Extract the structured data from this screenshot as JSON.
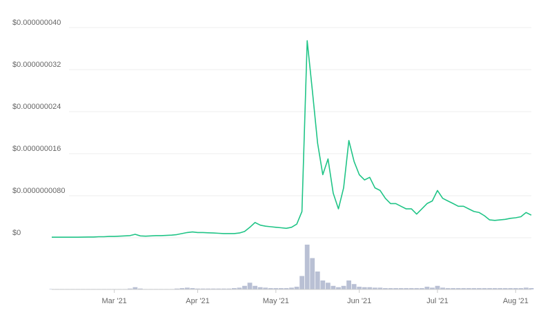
{
  "chart_data": [
    {
      "type": "line",
      "categories": [
        null,
        null,
        null,
        null,
        null,
        null,
        null,
        null,
        null,
        null,
        null,
        null,
        "Mar '21",
        null,
        null,
        null,
        null,
        null,
        null,
        null,
        null,
        null,
        null,
        null,
        null,
        null,
        null,
        null,
        "Apr '21",
        null,
        null,
        null,
        null,
        null,
        null,
        null,
        null,
        null,
        null,
        null,
        null,
        null,
        null,
        "May '21",
        null,
        null,
        null,
        null,
        null,
        null,
        null,
        null,
        null,
        null,
        null,
        null,
        null,
        null,
        null,
        "Jun '21",
        null,
        null,
        null,
        null,
        null,
        null,
        null,
        null,
        null,
        null,
        null,
        null,
        null,
        null,
        "Jul '21",
        null,
        null,
        null,
        null,
        null,
        null,
        null,
        null,
        null,
        null,
        null,
        null,
        null,
        null,
        "Aug '21",
        null,
        null,
        null
      ],
      "series": [
        {
          "color": "#1fc486",
          "values": [
            1e-10,
            1e-10,
            1e-10,
            1e-10,
            1e-10,
            1e-10,
            1.2e-10,
            1.5e-10,
            1.5e-10,
            2e-10,
            2e-10,
            2.5e-10,
            2.5e-10,
            3e-10,
            3.5e-10,
            4e-10,
            6.5e-10,
            3.5e-10,
            3e-10,
            3.5e-10,
            4e-10,
            4e-10,
            4.5e-10,
            5e-10,
            6e-10,
            8e-10,
            1e-09,
            1.1e-09,
            1e-09,
            1e-09,
            9.5e-10,
            9e-10,
            8.5e-10,
            8e-10,
            8e-10,
            8e-10,
            9e-10,
            1.2e-09,
            2e-09,
            2.9e-09,
            2.4e-09,
            2.2e-09,
            2.1e-09,
            2e-09,
            1.9e-09,
            1.8e-09,
            2e-09,
            2.6e-09,
            5e-09,
            3.75e-08,
            2.8e-08,
            1.8e-08,
            1.2e-08,
            1.5e-08,
            8.5e-09,
            5.5e-09,
            9.5e-09,
            1.85e-08,
            1.45e-08,
            1.2e-08,
            1.1e-08,
            1.15e-08,
            9.5e-09,
            9e-09,
            7.5e-09,
            6.5e-09,
            6.5e-09,
            6e-09,
            5.5e-09,
            5.5e-09,
            4.5e-09,
            5.5e-09,
            6.5e-09,
            7e-09,
            9e-09,
            7.5e-09,
            7e-09,
            6.5e-09,
            6e-09,
            6e-09,
            5.5e-09,
            5e-09,
            4.8e-09,
            4.2e-09,
            3.4e-09,
            3.3e-09,
            3.4e-09,
            3.5e-09,
            3.7e-09,
            3.8e-09,
            4e-09,
            4.8e-09,
            4.3e-09
          ]
        }
      ],
      "ylim": [
        0,
        4e-08
      ],
      "yticks": [
        {
          "value": 0,
          "label": "$0"
        },
        {
          "value": 8e-09,
          "label": "$0.0000000080"
        },
        {
          "value": 1.6e-08,
          "label": "$0.000000016"
        },
        {
          "value": 2.4e-08,
          "label": "$0.000000024"
        },
        {
          "value": 3.2e-08,
          "label": "$0.000000032"
        },
        {
          "value": 4e-08,
          "label": "$0.000000040"
        }
      ],
      "grid": true
    },
    {
      "type": "bar",
      "color": "#b9c0d4",
      "values": [
        1,
        1,
        1,
        1,
        1,
        1,
        1,
        1,
        1,
        1,
        1,
        1,
        1,
        1,
        1,
        2,
        5,
        2,
        1,
        1,
        1,
        1,
        1,
        1,
        2,
        3,
        4,
        3,
        2,
        2,
        2,
        2,
        2,
        2,
        2,
        3,
        4,
        8,
        15,
        8,
        5,
        4,
        3,
        3,
        3,
        3,
        4,
        6,
        30,
        100,
        70,
        40,
        20,
        15,
        8,
        5,
        8,
        20,
        12,
        6,
        5,
        5,
        4,
        4,
        3,
        3,
        3,
        3,
        3,
        3,
        3,
        3,
        6,
        4,
        8,
        4,
        3,
        3,
        3,
        3,
        3,
        3,
        3,
        3,
        3,
        3,
        3,
        3,
        3,
        3,
        3,
        4,
        3
      ]
    }
  ]
}
